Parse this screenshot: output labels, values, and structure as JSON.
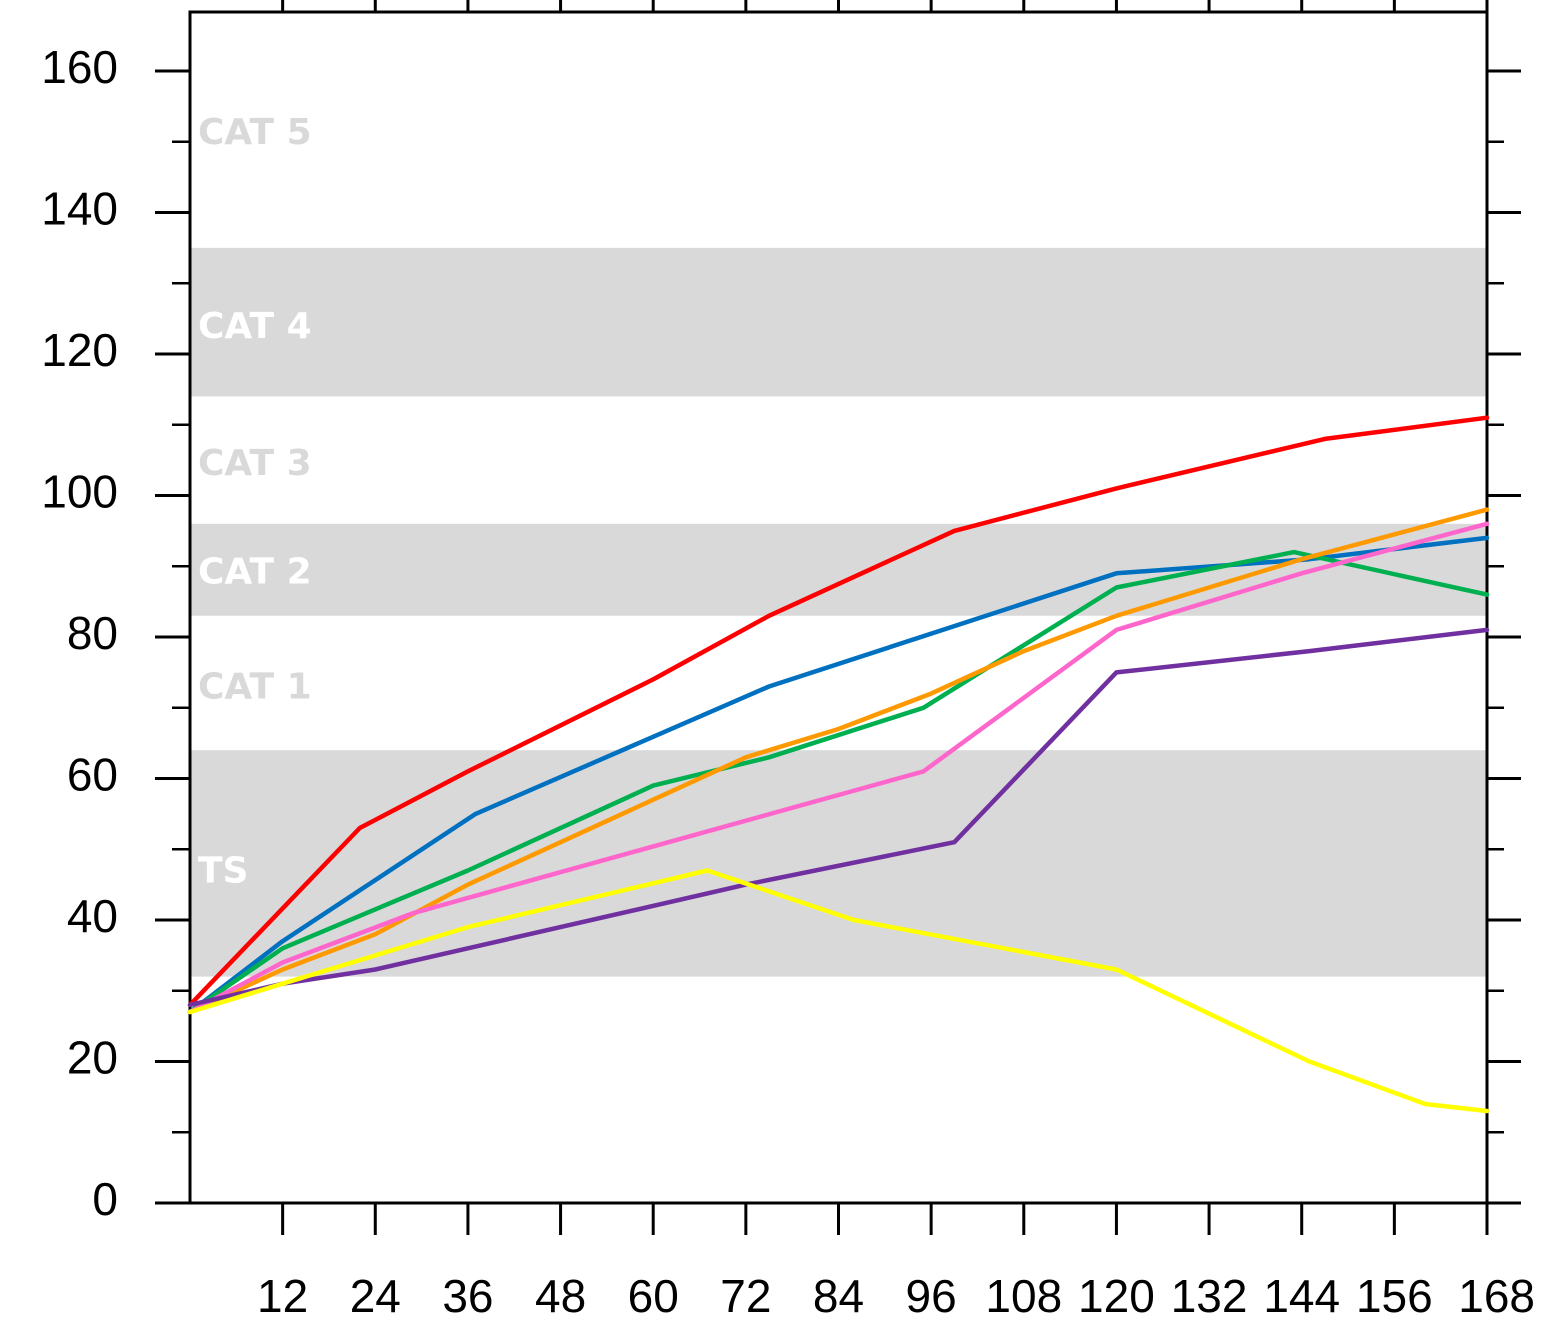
{
  "chart_data": {
    "type": "line",
    "title": "",
    "xlabel": "",
    "ylabel": "",
    "xlim": [
      0,
      168
    ],
    "ylim": [
      0,
      170
    ],
    "x_ticks": [
      12,
      24,
      36,
      48,
      60,
      72,
      84,
      96,
      108,
      120,
      132,
      144,
      156,
      168
    ],
    "x_tick_labels": [
      "12",
      "24",
      "36",
      "48",
      "60",
      "72",
      "84",
      "96",
      "108",
      "120",
      "132",
      "144",
      "156",
      "168"
    ],
    "y_ticks": [
      0,
      20,
      40,
      60,
      80,
      100,
      120,
      140,
      160
    ],
    "y_tick_labels": [
      "0",
      "20",
      "40",
      "60",
      "80",
      "100",
      "120",
      "140",
      "160"
    ],
    "grid": false,
    "legend": "none",
    "bands": [
      {
        "label": "TS",
        "from": 32,
        "to": 64,
        "shaded": true
      },
      {
        "label": "CAT 1",
        "from": 64,
        "to": 83,
        "shaded": false
      },
      {
        "label": "CAT 2",
        "from": 83,
        "to": 96,
        "shaded": true
      },
      {
        "label": "CAT 3",
        "from": 96,
        "to": 114,
        "shaded": false
      },
      {
        "label": "CAT 4",
        "from": 114,
        "to": 135,
        "shaded": true
      },
      {
        "label": "CAT 5",
        "from": 135,
        "to": 170,
        "shaded": false
      }
    ],
    "band_color": "#d9d9d9",
    "band_label_colors": {
      "shaded": "#ffffff",
      "unshaded": "#d9d9d9"
    },
    "series": [
      {
        "color": "#ff0000",
        "points": [
          [
            0,
            28
          ],
          [
            22,
            53
          ],
          [
            36,
            61
          ],
          [
            60,
            74
          ],
          [
            75,
            83
          ],
          [
            99,
            95
          ],
          [
            120,
            101
          ],
          [
            147,
            108
          ],
          [
            168,
            111
          ]
        ]
      },
      {
        "color": "#0070c0",
        "points": [
          [
            0,
            27
          ],
          [
            12,
            37
          ],
          [
            37,
            55
          ],
          [
            75,
            73
          ],
          [
            120,
            89
          ],
          [
            145,
            91
          ],
          [
            168,
            94
          ]
        ]
      },
      {
        "color": "#00b050",
        "points": [
          [
            0,
            27
          ],
          [
            12,
            36
          ],
          [
            36,
            47
          ],
          [
            60,
            59
          ],
          [
            75,
            63
          ],
          [
            95,
            70
          ],
          [
            120,
            87
          ],
          [
            143,
            92
          ],
          [
            168,
            86
          ]
        ]
      },
      {
        "color": "#ff9900",
        "points": [
          [
            0,
            27
          ],
          [
            12,
            33
          ],
          [
            24,
            38
          ],
          [
            36,
            45
          ],
          [
            48,
            51
          ],
          [
            60,
            57
          ],
          [
            72,
            63
          ],
          [
            84,
            67
          ],
          [
            96,
            72
          ],
          [
            108,
            78
          ],
          [
            120,
            83
          ],
          [
            144,
            91
          ],
          [
            168,
            98
          ]
        ]
      },
      {
        "color": "#ff66cc",
        "points": [
          [
            0,
            27
          ],
          [
            12,
            34
          ],
          [
            29,
            41
          ],
          [
            95,
            61
          ],
          [
            120,
            81
          ],
          [
            144,
            89
          ],
          [
            168,
            96
          ]
        ]
      },
      {
        "color": "#7030a0",
        "points": [
          [
            0,
            28
          ],
          [
            12,
            31
          ],
          [
            24,
            33
          ],
          [
            36,
            36
          ],
          [
            72,
            45
          ],
          [
            99,
            51
          ],
          [
            120,
            75
          ],
          [
            145,
            78
          ],
          [
            168,
            81
          ]
        ]
      },
      {
        "color": "#ffff00",
        "points": [
          [
            0,
            27
          ],
          [
            12,
            31
          ],
          [
            36,
            39
          ],
          [
            67,
            47
          ],
          [
            86,
            40
          ],
          [
            120,
            33
          ],
          [
            145,
            20
          ],
          [
            160,
            14
          ],
          [
            168,
            13
          ]
        ]
      }
    ]
  }
}
